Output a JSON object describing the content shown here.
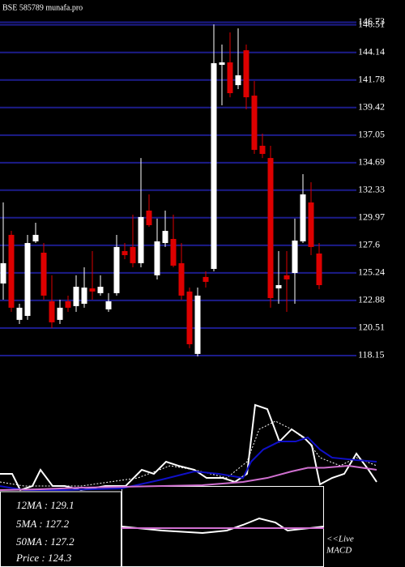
{
  "chart_data": [
    {
      "type": "candlestick",
      "title": "BSE 585789 munafa.pro",
      "open": [
        124.33,
        128.5,
        121.21,
        121.55,
        127.94,
        126.97,
        122.8,
        121.21,
        122.8,
        122.39,
        122.59,
        123.91,
        123.5,
        122.11,
        123.5,
        127.11,
        127.46,
        126.07,
        130.58,
        125.03,
        127.8,
        128.15,
        126.07,
        123.64,
        118.29,
        124.89,
        125.58,
        143.08,
        143.29,
        141.34,
        144.33,
        140.44,
        136.14,
        135.09,
        123.91,
        125.03,
        125.23,
        127.94,
        131.28,
        126.9
      ],
      "high": [
        131.28,
        128.84,
        122.59,
        128.5,
        129.54,
        127.8,
        125.03,
        122.94,
        123.29,
        125.03,
        125.72,
        127.11,
        125.03,
        123.5,
        128.5,
        127.8,
        130.23,
        135.09,
        131.97,
        129.89,
        130.58,
        130.23,
        127.8,
        123.98,
        123.98,
        125.37,
        146.55,
        144.82,
        145.86,
        146.21,
        144.82,
        141.69,
        137.18,
        136.14,
        127.11,
        127.11,
        129.89,
        133.71,
        133.01,
        127.8
      ],
      "low": [
        122.94,
        121.9,
        120.86,
        121.21,
        127.8,
        122.94,
        120.51,
        120.86,
        121.9,
        121.9,
        122.25,
        122.94,
        123.29,
        121.9,
        123.29,
        126.41,
        125.72,
        125.72,
        129.19,
        124.68,
        127.46,
        125.72,
        122.94,
        118.78,
        118.08,
        123.98,
        125.37,
        139.61,
        140.3,
        141.0,
        139.26,
        135.44,
        135.09,
        122.25,
        122.59,
        121.9,
        122.59,
        127.8,
        126.76,
        123.84
      ],
      "close": [
        126.07,
        122.25,
        122.25,
        127.8,
        128.5,
        123.29,
        121.0,
        122.25,
        122.25,
        124.05,
        123.98,
        123.64,
        124.05,
        122.8,
        127.46,
        126.76,
        126.07,
        130.03,
        129.33,
        127.94,
        128.84,
        125.86,
        123.29,
        119.12,
        123.29,
        124.47,
        143.22,
        143.29,
        140.65,
        142.18,
        140.3,
        135.79,
        135.44,
        123.08,
        124.19,
        124.68,
        128.01,
        131.97,
        127.46,
        124.19
      ],
      "up_color": "#ffffff",
      "down_color": "#dd0000",
      "grid_color": "#1c1c8a",
      "ylim": [
        117.73,
        148.64
      ],
      "yticks": [
        146.73,
        146.51,
        144.14,
        141.78,
        139.42,
        137.05,
        134.69,
        132.33,
        129.97,
        127.6,
        125.24,
        122.88,
        120.51,
        118.15
      ],
      "grid": true
    },
    {
      "type": "line",
      "xlim": [
        0,
        50
      ],
      "ylim": [
        0,
        100
      ],
      "annotations": [
        "12MA : 129.1",
        "5MA : 127.2",
        "50MA : 127.2",
        "Price  : 124.3"
      ],
      "series": [
        {
          "color": "#ffffff",
          "style": "solid",
          "x": [
            0,
            1.5,
            2.5,
            4,
            5,
            6.5,
            8,
            10,
            13,
            15.5,
            17.5,
            19,
            20.5,
            22,
            24,
            25.5,
            26.5,
            27.5,
            29,
            30.5,
            31.5,
            33,
            34.5,
            36,
            37.5,
            38.5,
            39.5,
            41,
            42.5,
            44,
            45.5,
            46.5
          ],
          "values": [
            18.2,
            18.2,
            0,
            4.5,
            22.7,
            4.5,
            4.5,
            0,
            4.5,
            4.5,
            22.7,
            18.2,
            31.8,
            27.3,
            22.7,
            13.6,
            13.6,
            13.6,
            9.1,
            18.2,
            95.5,
            90.9,
            54.5,
            68.2,
            59.1,
            50,
            6.4,
            13.6,
            18.2,
            40.9,
            22.7,
            9.1
          ]
        },
        {
          "color": "#ffffff",
          "style": "dotted",
          "x": [
            0,
            3,
            10,
            17,
            21,
            24,
            28,
            30.5,
            32,
            34,
            36,
            38,
            39.5,
            42,
            44,
            46.5
          ],
          "values": [
            9.1,
            4.5,
            4.5,
            13.6,
            27.3,
            22.7,
            13.6,
            31.8,
            68.2,
            77.3,
            68.2,
            54.5,
            36.4,
            27.3,
            36.4,
            27.3
          ]
        },
        {
          "color": "#1010c8",
          "style": "solid",
          "x": [
            0,
            3,
            8,
            15,
            20,
            24,
            27,
            30,
            31,
            32.5,
            34.5,
            36.5,
            38,
            39.5,
            41,
            44,
            46.5
          ],
          "values": [
            4.5,
            0,
            0,
            1.8,
            11.8,
            20.9,
            18.2,
            13.6,
            31.8,
            45.5,
            54.5,
            54.5,
            59.1,
            45.5,
            36.4,
            33.6,
            31.8
          ]
        },
        {
          "color": "#d070d0",
          "style": "solid",
          "x": [
            0,
            5,
            10,
            15,
            20,
            25,
            30,
            33,
            36,
            38,
            40,
            43,
            46.5
          ],
          "values": [
            0,
            0.9,
            2.7,
            3.6,
            4.5,
            5.5,
            9.1,
            13.6,
            20.9,
            25,
            25,
            27.3,
            22.7
          ]
        }
      ]
    },
    {
      "type": "line",
      "xlim": [
        0,
        50
      ],
      "ylim": [
        -10,
        10
      ],
      "annotations": [
        "<<Live",
        "MACD"
      ],
      "series": [
        {
          "color": "#ffffff",
          "style": "solid",
          "x": [
            15,
            20,
            25,
            28,
            30,
            32,
            34,
            35.5,
            40
          ],
          "values": [
            0,
            -1,
            -1.6,
            -1,
            0.4,
            2,
            1,
            -1,
            0
          ]
        },
        {
          "color": "#d070d0",
          "style": "solid",
          "x": [
            15,
            40
          ],
          "values": [
            -0.4,
            -0.4
          ]
        }
      ]
    }
  ]
}
